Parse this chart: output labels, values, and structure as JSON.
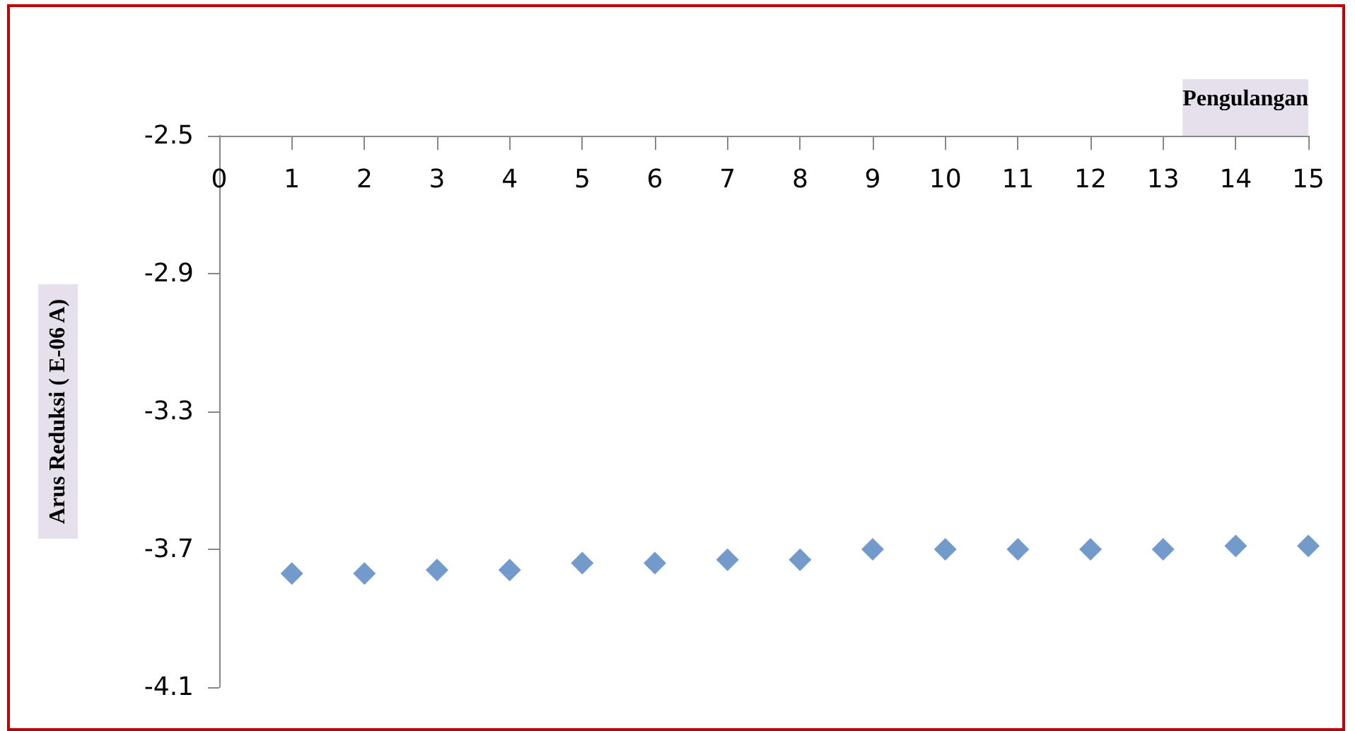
{
  "chart_data": {
    "type": "scatter",
    "xlabel": "Pengulangan",
    "ylabel": "Arus Reduksi ( E-06 A)",
    "x": [
      1,
      2,
      3,
      4,
      5,
      6,
      7,
      8,
      9,
      10,
      11,
      12,
      13,
      14,
      15
    ],
    "series": [
      {
        "color": "#4f81bd",
        "values": [
          -3.77,
          -3.77,
          -3.76,
          -3.76,
          -3.74,
          -3.74,
          -3.73,
          -3.73,
          -3.7,
          -3.7,
          -3.7,
          -3.7,
          -3.7,
          -3.69,
          -3.69
        ]
      }
    ],
    "xlim": [
      0,
      15
    ],
    "xticks": [
      0,
      1,
      2,
      3,
      4,
      5,
      6,
      7,
      8,
      9,
      10,
      11,
      12,
      13,
      14,
      15
    ],
    "ylim": [
      -4.1,
      -2.5
    ],
    "yticks": [
      -4.1,
      -3.7,
      -3.3,
      -2.9,
      -2.5
    ],
    "grid": false,
    "marker": "diamond"
  }
}
